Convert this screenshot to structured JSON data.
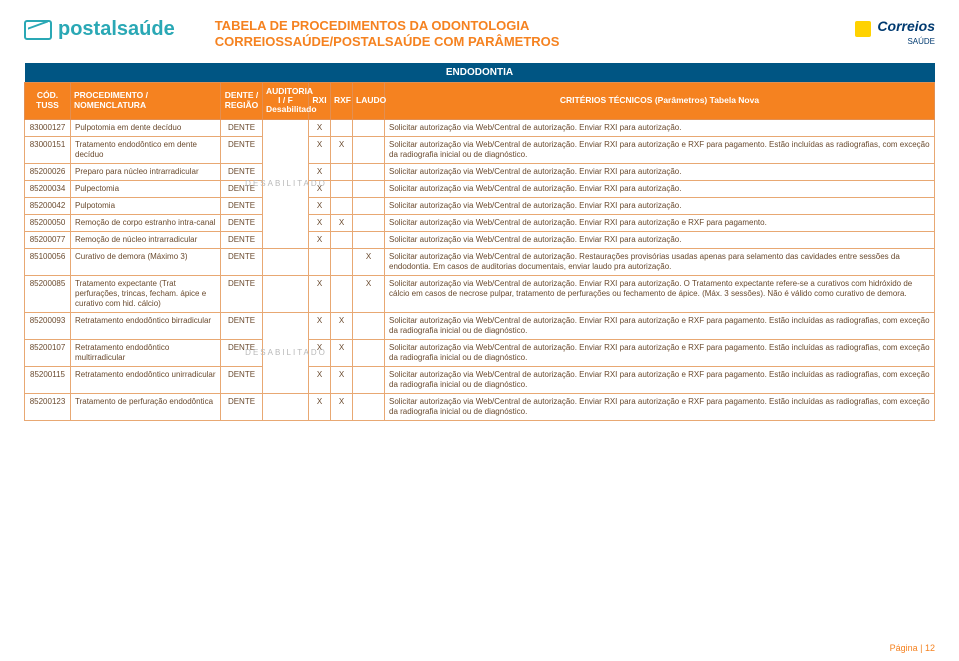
{
  "brand_left": "postalsaúde",
  "title_line1": "TABELA DE PROCEDIMENTOS DA ODONTOLOGIA",
  "title_line2": "CORREIOSSAÚDE/POSTALSAÚDE COM PARÂMETROS",
  "brand_right_name": "Correios",
  "brand_right_sub": "SAÚDE",
  "section_title": "ENDODONTIA",
  "audit_vertical": "DESABILITADO",
  "columns": {
    "cod": "CÓD. TUSS",
    "proc": "PROCEDIMENTO / NOMENCLATURA",
    "dente": "DENTE / REGIÃO",
    "aud": "AUDITORIA I / F Desabilitado",
    "rxi": "RXI",
    "rxf": "RXF",
    "laudo": "LAUDO",
    "crit": "CRITÉRIOS TÉCNICOS (Parâmetros) Tabela Nova"
  },
  "rows": [
    {
      "cod": "83000127",
      "proc": "Pulpotomia em dente decíduo",
      "dente": "DENTE",
      "rxi": "X",
      "rxf": "",
      "laudo": "",
      "crit": "Solicitar autorização via Web/Central de autorização. Enviar RXI para autorização."
    },
    {
      "cod": "83000151",
      "proc": "Tratamento endodôntico em dente decíduo",
      "dente": "DENTE",
      "rxi": "X",
      "rxf": "X",
      "laudo": "",
      "crit": "Solicitar autorização via Web/Central de autorização. Enviar RXI para autorização e RXF para pagamento. Estão incluídas as radiografias, com exceção da radiografia inicial ou de diagnóstico."
    },
    {
      "cod": "85200026",
      "proc": "Preparo para núcleo intrarradicular",
      "dente": "DENTE",
      "rxi": "X",
      "rxf": "",
      "laudo": "",
      "crit": "Solicitar autorização via Web/Central de autorização. Enviar RXI para autorização."
    },
    {
      "cod": "85200034",
      "proc": "Pulpectomia",
      "dente": "DENTE",
      "rxi": "X",
      "rxf": "",
      "laudo": "",
      "crit": "Solicitar autorização via Web/Central de autorização. Enviar RXI para autorização."
    },
    {
      "cod": "85200042",
      "proc": "Pulpotomia",
      "dente": "DENTE",
      "rxi": "X",
      "rxf": "",
      "laudo": "",
      "crit": "Solicitar autorização via Web/Central de autorização. Enviar RXI para autorização."
    },
    {
      "cod": "85200050",
      "proc": "Remoção de corpo estranho intra-canal",
      "dente": "DENTE",
      "rxi": "X",
      "rxf": "X",
      "laudo": "",
      "crit": "Solicitar autorização via Web/Central de autorização. Enviar RXI para autorização e RXF para pagamento."
    },
    {
      "cod": "85200077",
      "proc": "Remoção de núcleo intrarradicular",
      "dente": "DENTE",
      "rxi": "X",
      "rxf": "",
      "laudo": "",
      "crit": "Solicitar autorização via Web/Central de autorização. Enviar RXI para autorização."
    },
    {
      "cod": "85100056",
      "proc": "Curativo de demora (Máximo 3)",
      "dente": "DENTE",
      "rxi": "",
      "rxf": "",
      "laudo": "X",
      "crit": "Solicitar autorização via Web/Central de autorização. Restaurações provisórias usadas apenas para selamento das cavidades entre sessões da endodontia. Em casos de auditorias documentais, enviar laudo pra autorização."
    },
    {
      "cod": "85200085",
      "proc": "Tratamento expectante (Trat perfurações, trincas, fecham. ápice e curativo com hid. cálcio)",
      "dente": "DENTE",
      "rxi": "X",
      "rxf": "",
      "laudo": "X",
      "crit": "Solicitar autorização via Web/Central de autorização. Enviar RXI para autorização. O Tratamento expectante refere-se a curativos com hidróxido de cálcio em casos de necrose pulpar, tratamento de perfurações ou fechamento de ápice. (Máx. 3 sessões). Não é válido como curativo de demora."
    },
    {
      "cod": "85200093",
      "proc": "Retratamento endodôntico birradicular",
      "dente": "DENTE",
      "rxi": "X",
      "rxf": "X",
      "laudo": "",
      "crit": "Solicitar autorização via Web/Central de autorização. Enviar RXI para autorização e RXF para pagamento. Estão incluídas as radiografias, com exceção da radiografia inicial ou de diagnóstico."
    },
    {
      "cod": "85200107",
      "proc": "Retratamento endodôntico multirradicular",
      "dente": "DENTE",
      "rxi": "X",
      "rxf": "X",
      "laudo": "",
      "crit": "Solicitar autorização via Web/Central de autorização. Enviar RXI para autorização e RXF para pagamento. Estão incluídas as radiografias, com exceção da radiografia inicial ou de diagnóstico."
    },
    {
      "cod": "85200115",
      "proc": "Retratamento endodôntico unirradicular",
      "dente": "DENTE",
      "rxi": "X",
      "rxf": "X",
      "laudo": "",
      "crit": "Solicitar autorização via Web/Central de autorização. Enviar RXI para autorização e RXF para pagamento. Estão incluídas as radiografias, com exceção da radiografia inicial ou de diagnóstico."
    },
    {
      "cod": "85200123",
      "proc": "Tratamento de perfuração endodôntica",
      "dente": "DENTE",
      "rxi": "X",
      "rxf": "X",
      "laudo": "",
      "crit": "Solicitar autorização via Web/Central de autorização. Enviar RXI para autorização e RXF para pagamento. Estão incluídas as radiografias, com exceção da radiografia inicial ou de diagnóstico."
    }
  ],
  "footer": "Página | 12",
  "colors": {
    "orange": "#f58220",
    "teal": "#2aa8b5",
    "navy": "#005583",
    "row_text": "#6a4a2e",
    "grid": "#e8a873"
  },
  "audit_span_groups": [
    {
      "start": 0,
      "span": 7
    },
    {
      "start": 9,
      "span": 3
    }
  ]
}
